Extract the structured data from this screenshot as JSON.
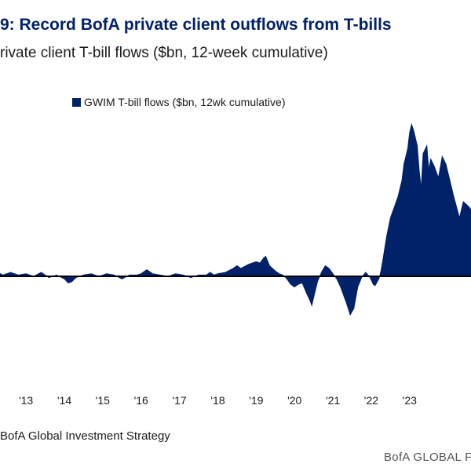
{
  "title": "9: Record BofA private client outflows from T-bills",
  "subtitle": "rivate client T-bill flows ($bn, 12-week cumulative)",
  "source": "BofA Global Investment Strategy",
  "brand": "BofA GLOBAL F",
  "colors": {
    "series": "#012169",
    "zero_line": "#000000"
  },
  "chart_data": {
    "type": "area",
    "title": "",
    "xlabel": "",
    "ylabel": "",
    "legend": "top-left",
    "grid": false,
    "x_ticks": [
      "'13",
      "'14",
      "'15",
      "'16",
      "'17",
      "'18",
      "'19",
      "'20",
      "'21",
      "'22",
      "'23"
    ],
    "x_tick_values": [
      2013,
      2014,
      2015,
      2016,
      2017,
      2018,
      2019,
      2020,
      2021,
      2022,
      2023
    ],
    "x_range": [
      2012.2,
      2024.6
    ],
    "y_range": [
      -30,
      70
    ],
    "series": [
      {
        "name": "GWIM T-bill flows ($bn, 12wk cumulative)",
        "points": [
          [
            2012.2,
            2
          ],
          [
            2012.4,
            0.5
          ],
          [
            2012.6,
            1.5
          ],
          [
            2012.8,
            0.5
          ],
          [
            2013.0,
            1
          ],
          [
            2013.2,
            0
          ],
          [
            2013.4,
            1.5
          ],
          [
            2013.6,
            -0.5
          ],
          [
            2013.8,
            0.5
          ],
          [
            2014.0,
            -1
          ],
          [
            2014.1,
            -2.5
          ],
          [
            2014.2,
            -2
          ],
          [
            2014.3,
            -0.5
          ],
          [
            2014.5,
            0.5
          ],
          [
            2014.7,
            1
          ],
          [
            2014.9,
            0
          ],
          [
            2015.1,
            1
          ],
          [
            2015.3,
            0.5
          ],
          [
            2015.5,
            -1
          ],
          [
            2015.7,
            0.5
          ],
          [
            2015.9,
            0.5
          ],
          [
            2016.0,
            1
          ],
          [
            2016.15,
            2.5
          ],
          [
            2016.3,
            1
          ],
          [
            2016.5,
            0.5
          ],
          [
            2016.7,
            0
          ],
          [
            2016.9,
            1
          ],
          [
            2017.1,
            0.5
          ],
          [
            2017.3,
            -0.5
          ],
          [
            2017.5,
            0.5
          ],
          [
            2017.7,
            0.5
          ],
          [
            2017.8,
            1.5
          ],
          [
            2017.9,
            0.5
          ],
          [
            2018.0,
            1
          ],
          [
            2018.2,
            1.5
          ],
          [
            2018.4,
            3
          ],
          [
            2018.5,
            4
          ],
          [
            2018.6,
            3
          ],
          [
            2018.8,
            4.5
          ],
          [
            2019.0,
            5.5
          ],
          [
            2019.1,
            5
          ],
          [
            2019.2,
            7
          ],
          [
            2019.25,
            7.5
          ],
          [
            2019.35,
            4
          ],
          [
            2019.5,
            2
          ],
          [
            2019.6,
            1
          ],
          [
            2019.7,
            0.5
          ],
          [
            2019.8,
            -1
          ],
          [
            2019.9,
            -3
          ],
          [
            2020.0,
            -4
          ],
          [
            2020.1,
            -3
          ],
          [
            2020.2,
            -2.5
          ],
          [
            2020.3,
            -6
          ],
          [
            2020.4,
            -9
          ],
          [
            2020.45,
            -11
          ],
          [
            2020.5,
            -8
          ],
          [
            2020.6,
            -2
          ],
          [
            2020.7,
            1.5
          ],
          [
            2020.8,
            4
          ],
          [
            2020.9,
            3
          ],
          [
            2021.0,
            1
          ],
          [
            2021.1,
            -1
          ],
          [
            2021.2,
            -4
          ],
          [
            2021.35,
            -10
          ],
          [
            2021.45,
            -14.5
          ],
          [
            2021.55,
            -12
          ],
          [
            2021.65,
            -4
          ],
          [
            2021.75,
            -0.5
          ],
          [
            2021.85,
            1.5
          ],
          [
            2021.95,
            0
          ],
          [
            2022.05,
            -3
          ],
          [
            2022.1,
            -3.5
          ],
          [
            2022.2,
            -1
          ],
          [
            2022.25,
            2
          ],
          [
            2022.3,
            6
          ],
          [
            2022.4,
            15
          ],
          [
            2022.5,
            22
          ],
          [
            2022.6,
            26
          ],
          [
            2022.7,
            30
          ],
          [
            2022.8,
            36
          ],
          [
            2022.85,
            42
          ],
          [
            2022.95,
            48
          ],
          [
            2023.0,
            54
          ],
          [
            2023.05,
            57
          ],
          [
            2023.1,
            55
          ],
          [
            2023.2,
            49
          ],
          [
            2023.25,
            40
          ],
          [
            2023.3,
            33
          ],
          [
            2023.35,
            46
          ],
          [
            2023.45,
            49
          ],
          [
            2023.5,
            40
          ],
          [
            2023.55,
            44
          ],
          [
            2023.65,
            41
          ],
          [
            2023.75,
            37
          ],
          [
            2023.85,
            45
          ],
          [
            2023.95,
            42
          ],
          [
            2024.05,
            36
          ],
          [
            2024.15,
            30
          ],
          [
            2024.3,
            22
          ],
          [
            2024.4,
            28
          ],
          [
            2024.55,
            26
          ],
          [
            2024.6,
            25
          ]
        ]
      }
    ]
  }
}
